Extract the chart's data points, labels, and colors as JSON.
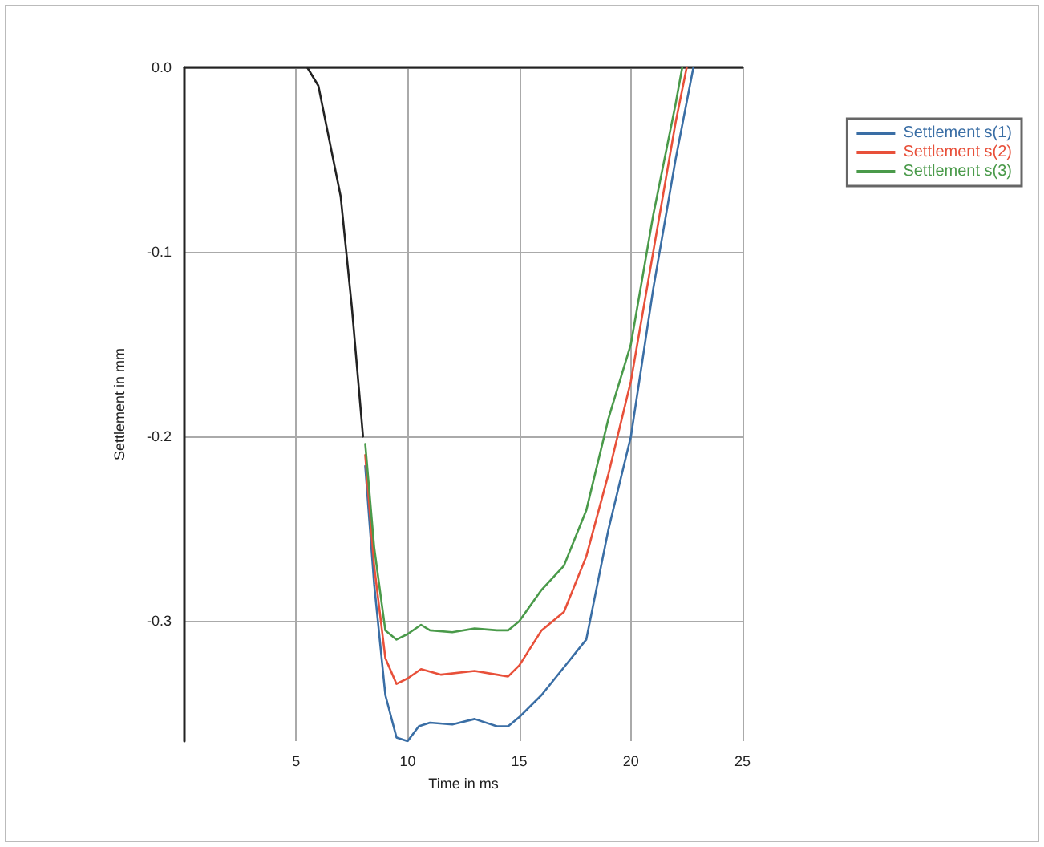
{
  "chart_data": {
    "type": "line",
    "xlabel": "Time in ms",
    "ylabel": "Settlement in mm",
    "xlim": [
      0,
      25
    ],
    "xticks": [
      5,
      10,
      15,
      20,
      25
    ],
    "ylim": [
      -0.365,
      0
    ],
    "yticks": [
      {
        "value": 0,
        "label": "0.0"
      },
      -0.1,
      -0.2,
      -0.3
    ],
    "grid": true,
    "legend": "top right",
    "marker": "none",
    "line_style": "solid",
    "series": [
      {
        "color": "#222222",
        "x": [
          5.5,
          6,
          6.5,
          7,
          7.5,
          8
        ],
        "values": [
          0,
          -0.01,
          -0.04,
          -0.07,
          -0.13,
          -0.2
        ]
      },
      {
        "name": "Settlement s(1)",
        "color": "#3a6ea5",
        "x": [
          8.1,
          8.5,
          9,
          9.5,
          10,
          10.5,
          11,
          12,
          13,
          14,
          14.5,
          15,
          16,
          17,
          18,
          19,
          20,
          21,
          22,
          22.8
        ],
        "values": [
          -0.216,
          -0.28,
          -0.34,
          -0.363,
          -0.365,
          -0.357,
          -0.355,
          -0.356,
          -0.353,
          -0.357,
          -0.357,
          -0.352,
          -0.34,
          -0.325,
          -0.31,
          -0.25,
          -0.2,
          -0.12,
          -0.05,
          0
        ]
      },
      {
        "name": "Settlement s(2)",
        "color": "#e8503a",
        "x": [
          8.1,
          8.5,
          9,
          9.5,
          10,
          10.6,
          11.5,
          13,
          14,
          14.5,
          15,
          16,
          17,
          18,
          19,
          20,
          21,
          22,
          22.5
        ],
        "values": [
          -0.21,
          -0.27,
          -0.32,
          -0.334,
          -0.331,
          -0.326,
          -0.329,
          -0.327,
          -0.329,
          -0.33,
          -0.324,
          -0.305,
          -0.295,
          -0.265,
          -0.22,
          -0.17,
          -0.1,
          -0.03,
          0
        ]
      },
      {
        "name": "Settlement s(3)",
        "color": "#4a9a4a",
        "x": [
          8.1,
          8.5,
          9,
          9.5,
          10,
          10.6,
          11,
          12,
          13,
          14,
          14.5,
          15,
          16,
          17,
          18,
          19,
          20,
          21,
          22,
          22.3
        ],
        "values": [
          -0.204,
          -0.26,
          -0.305,
          -0.31,
          -0.307,
          -0.302,
          -0.305,
          -0.306,
          -0.304,
          -0.305,
          -0.305,
          -0.3,
          -0.283,
          -0.27,
          -0.24,
          -0.19,
          -0.15,
          -0.08,
          -0.02,
          0
        ]
      }
    ]
  }
}
